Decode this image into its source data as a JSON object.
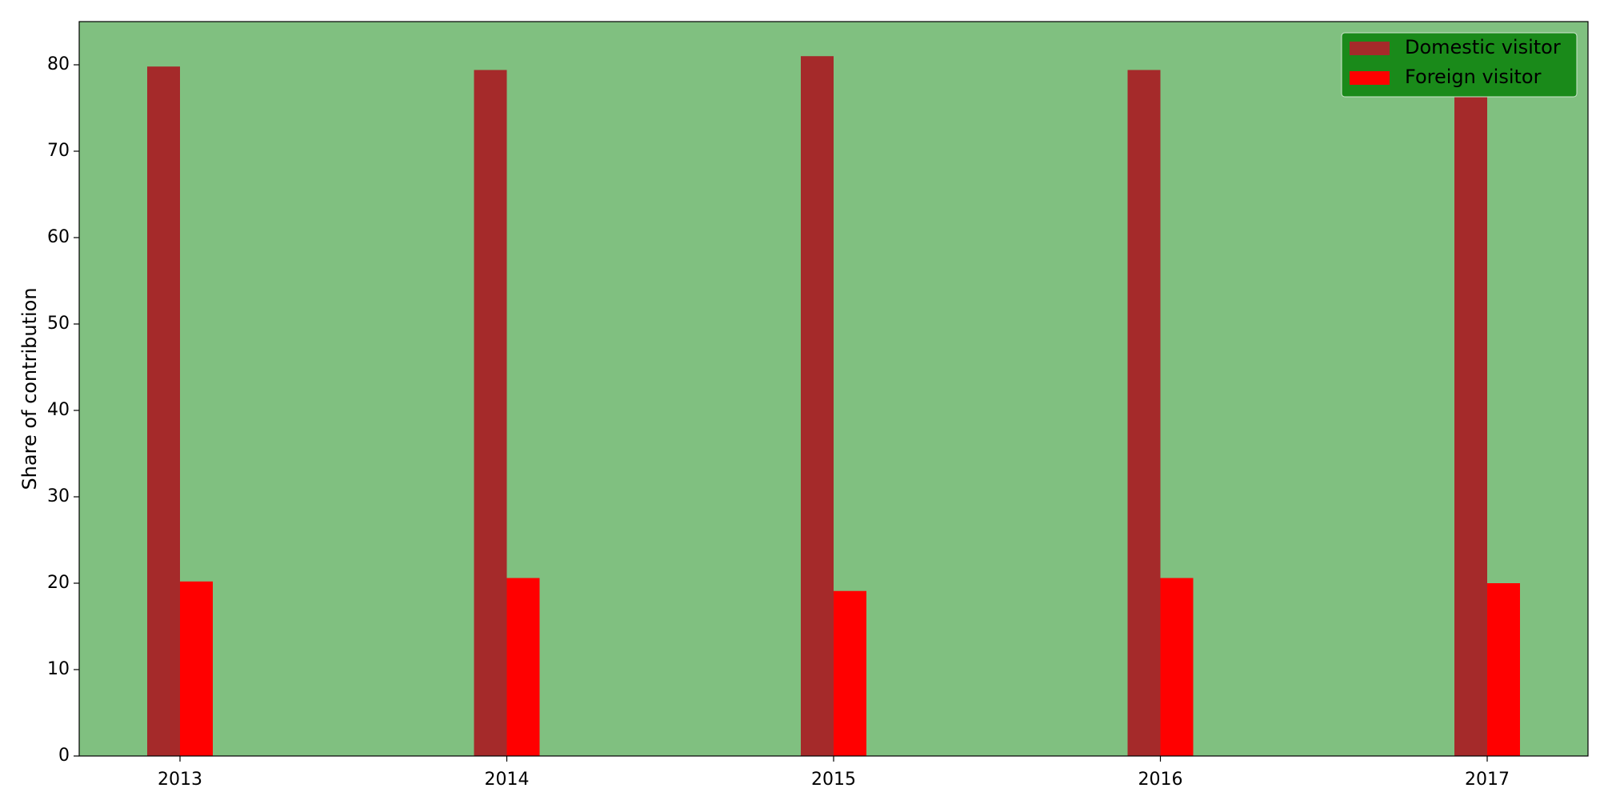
{
  "chart_data": {
    "type": "bar",
    "categories": [
      "2013",
      "2014",
      "2015",
      "2016",
      "2017"
    ],
    "series": [
      {
        "name": "Domestic visitor",
        "values": [
          79.8,
          79.4,
          81.0,
          79.4,
          80.0
        ],
        "color": "#a52a2a"
      },
      {
        "name": "Foreign visitor",
        "values": [
          20.2,
          20.6,
          19.1,
          20.6,
          20.0
        ],
        "color": "#ff0000"
      }
    ],
    "title": "",
    "xlabel": "",
    "ylabel": "Share of contribution",
    "ylim": [
      0,
      85
    ],
    "yticks": [
      "0",
      "10",
      "20",
      "30",
      "40",
      "50",
      "60",
      "70",
      "80"
    ],
    "grid": false,
    "legend_position": "top-right",
    "plot_background": "#80c080",
    "legend_background": "#1a8a1a"
  }
}
